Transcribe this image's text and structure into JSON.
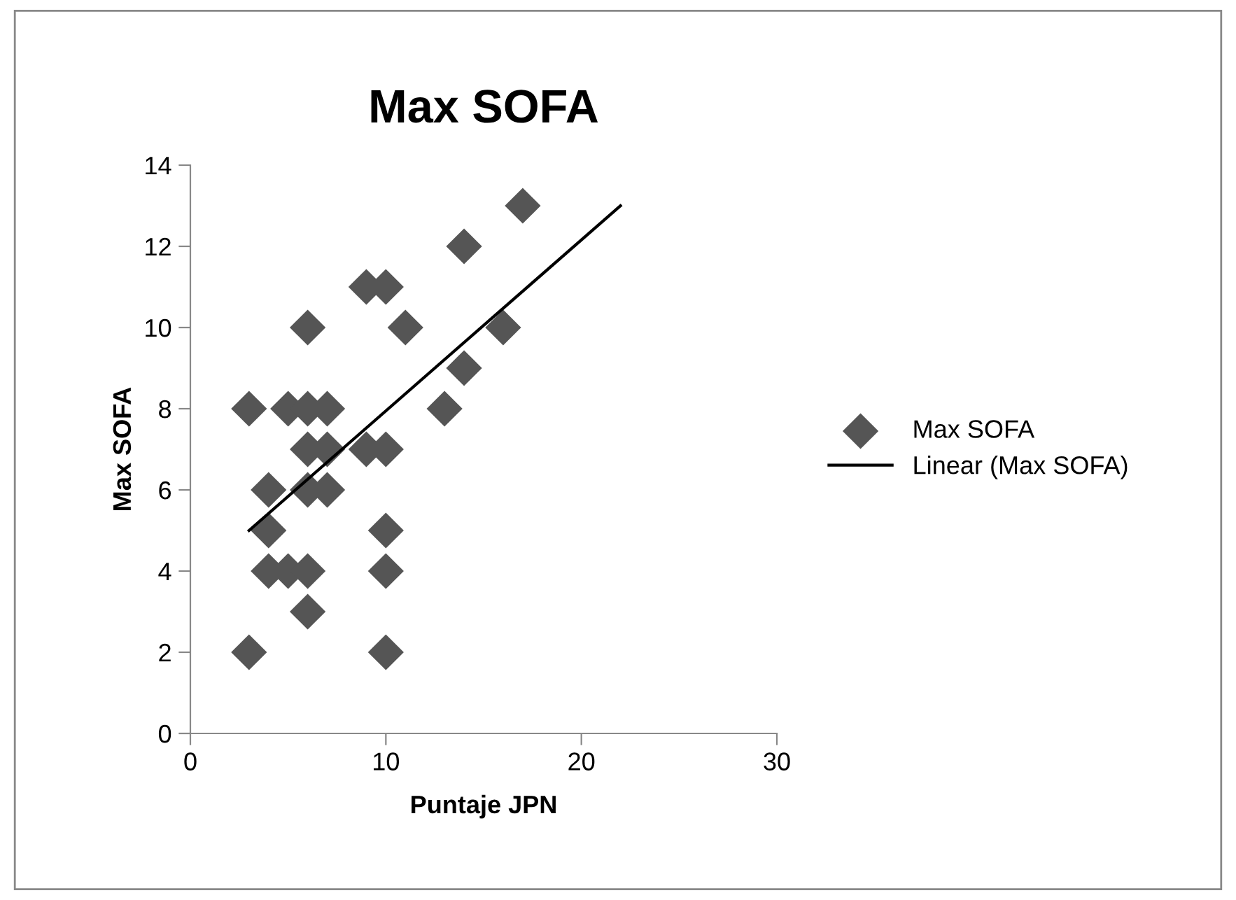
{
  "chart_data": {
    "type": "scatter",
    "title": "Max SOFA",
    "xlabel": "Puntaje JPN",
    "ylabel": "Max SOFA",
    "xlim": [
      0,
      30
    ],
    "xticks": [
      0,
      10,
      20,
      30
    ],
    "ylim": [
      0,
      14
    ],
    "yticks": [
      0,
      2,
      4,
      6,
      8,
      10,
      12,
      14
    ],
    "grid": false,
    "legend": "right",
    "series": [
      {
        "name": "Max SOFA",
        "marker": "diamond",
        "color": "#555555",
        "x": [
          3,
          3,
          4,
          4,
          4,
          5,
          5,
          6,
          6,
          6,
          6,
          6,
          6,
          7,
          7,
          7,
          9,
          9,
          10,
          10,
          10,
          10,
          10,
          11,
          13,
          14,
          14,
          16,
          17
        ],
        "values": [
          8,
          2,
          6,
          5,
          4,
          8,
          4,
          10,
          8,
          7,
          6,
          4,
          3,
          8,
          7,
          6,
          11,
          7,
          11,
          7,
          5,
          4,
          2,
          10,
          8,
          12,
          9,
          10,
          13
        ]
      },
      {
        "name": "Linear (Max SOFA)",
        "type": "line",
        "color": "#000000",
        "x": [
          3,
          22
        ],
        "values": [
          5,
          13
        ]
      }
    ]
  }
}
